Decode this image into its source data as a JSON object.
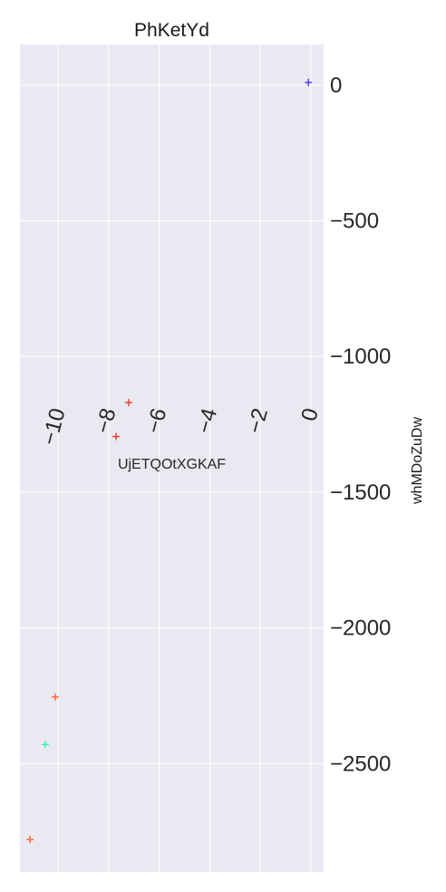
{
  "chart_data": {
    "type": "scatter",
    "title": "PhKetYd",
    "xlabel": "UjETQOtXGKAF",
    "ylabel": "whMDoZuDw",
    "xlim": [
      -11.5,
      0.5
    ],
    "ylim": [
      -2900,
      150
    ],
    "xticks": [
      -10,
      -8,
      -6,
      -4,
      -2,
      0
    ],
    "xtick_labels": [
      "−10",
      "−8",
      "−6",
      "−4",
      "−2",
      "0"
    ],
    "yticks": [
      0,
      -500,
      -1000,
      -1500,
      -2000,
      -2500
    ],
    "ytick_labels": [
      "0",
      "−500",
      "−1000",
      "−1500",
      "−2000",
      "−2500"
    ],
    "y_axis_position": "right",
    "x_tick_labels_position": "inside-middle",
    "grid": true,
    "marker": "+",
    "points": [
      {
        "x": -0.1,
        "y": 10,
        "color": "#5b3df5"
      },
      {
        "x": -7.2,
        "y": -1170,
        "color": "#f4402c"
      },
      {
        "x": -7.7,
        "y": -1295,
        "color": "#f4402c"
      },
      {
        "x": -10.1,
        "y": -2255,
        "color": "#ff6a3d"
      },
      {
        "x": -10.5,
        "y": -2430,
        "color": "#3ff0b4"
      },
      {
        "x": -11.1,
        "y": -2780,
        "color": "#ff6a3d"
      }
    ],
    "colors": {
      "plot_background": "#e9e9f1",
      "grid": "#ffffff",
      "figure_background": "#ffffff"
    }
  }
}
